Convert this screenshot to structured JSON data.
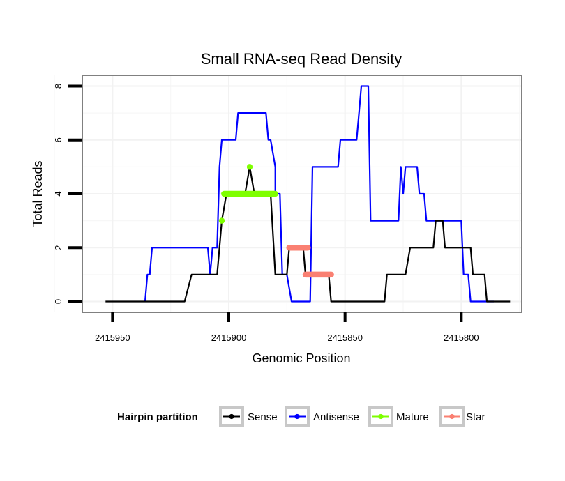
{
  "chart_data": {
    "type": "line",
    "title": "Small RNA-seq Read Density",
    "xlabel": "Genomic Position",
    "ylabel": "Total Reads",
    "xlim": [
      2415963,
      2415774
    ],
    "ylim": [
      -0.4,
      8.4
    ],
    "x_reversed": true,
    "x_ticks": [
      2415950,
      2415900,
      2415850,
      2415800
    ],
    "x_tick_labels": [
      "2415950",
      "2415900",
      "2415850",
      "2415800"
    ],
    "y_ticks": [
      0,
      2,
      4,
      6,
      8
    ],
    "y_tick_labels": [
      "0",
      "2",
      "4",
      "6",
      "8"
    ],
    "legend": {
      "title": "Hairpin partition",
      "position": "bottom",
      "items": [
        "Sense",
        "Antisense",
        "Mature",
        "Star"
      ]
    },
    "series": [
      {
        "name": "Sense",
        "color": "#000000",
        "points": [
          [
            2415953,
            0
          ],
          [
            2415936,
            0
          ],
          [
            2415919,
            0
          ],
          [
            2415916,
            1
          ],
          [
            2415905,
            1
          ],
          [
            2415903,
            3
          ],
          [
            2415901,
            4
          ],
          [
            2415893,
            4
          ],
          [
            2415891,
            5
          ],
          [
            2415889,
            4
          ],
          [
            2415882,
            4
          ],
          [
            2415880,
            1
          ],
          [
            2415875,
            1
          ],
          [
            2415874,
            2
          ],
          [
            2415868,
            2
          ],
          [
            2415867,
            1
          ],
          [
            2415857,
            1
          ],
          [
            2415856,
            0
          ],
          [
            2415833,
            0
          ],
          [
            2415832,
            1
          ],
          [
            2415824,
            1
          ],
          [
            2415822,
            2
          ],
          [
            2415812,
            2
          ],
          [
            2415811,
            3
          ],
          [
            2415808,
            3
          ],
          [
            2415807,
            2
          ],
          [
            2415796,
            2
          ],
          [
            2415795,
            1
          ],
          [
            2415790,
            1
          ],
          [
            2415789,
            0
          ],
          [
            2415779,
            0
          ]
        ]
      },
      {
        "name": "Antisense",
        "color": "#0000ff",
        "points": [
          [
            2415936,
            0
          ],
          [
            2415935,
            1
          ],
          [
            2415934,
            1
          ],
          [
            2415933,
            2
          ],
          [
            2415909,
            2
          ],
          [
            2415908,
            1
          ],
          [
            2415907,
            2
          ],
          [
            2415905,
            2
          ],
          [
            2415904,
            5
          ],
          [
            2415903,
            6
          ],
          [
            2415897,
            6
          ],
          [
            2415896,
            7
          ],
          [
            2415884,
            7
          ],
          [
            2415883,
            6
          ],
          [
            2415882,
            6
          ],
          [
            2415880,
            5
          ],
          [
            2415880,
            4
          ],
          [
            2415878,
            4
          ],
          [
            2415877,
            1
          ],
          [
            2415875,
            1
          ],
          [
            2415873,
            0
          ],
          [
            2415865,
            0
          ],
          [
            2415864,
            5
          ],
          [
            2415853,
            5
          ],
          [
            2415852,
            6
          ],
          [
            2415845,
            6
          ],
          [
            2415844,
            7
          ],
          [
            2415843,
            8
          ],
          [
            2415840,
            8
          ],
          [
            2415839,
            3
          ],
          [
            2415827,
            3
          ],
          [
            2415826,
            5
          ],
          [
            2415825,
            4
          ],
          [
            2415824,
            5
          ],
          [
            2415819,
            5
          ],
          [
            2415818,
            4
          ],
          [
            2415816,
            4
          ],
          [
            2415815,
            3
          ],
          [
            2415800,
            3
          ],
          [
            2415799,
            1
          ],
          [
            2415797,
            1
          ],
          [
            2415796,
            0
          ],
          [
            2415786,
            0
          ]
        ]
      },
      {
        "name": "Mature",
        "color": "#7fff00",
        "segments": [
          {
            "x": [
              2415903,
              2415903
            ],
            "y": 3
          },
          {
            "x": [
              2415902,
              2415880
            ],
            "y": 4
          },
          {
            "x": [
              2415891,
              2415891
            ],
            "y": 5
          }
        ]
      },
      {
        "name": "Star",
        "color": "#fa8072",
        "segments": [
          {
            "x": [
              2415874,
              2415866
            ],
            "y": 2
          },
          {
            "x": [
              2415867,
              2415856
            ],
            "y": 1
          }
        ]
      }
    ]
  }
}
